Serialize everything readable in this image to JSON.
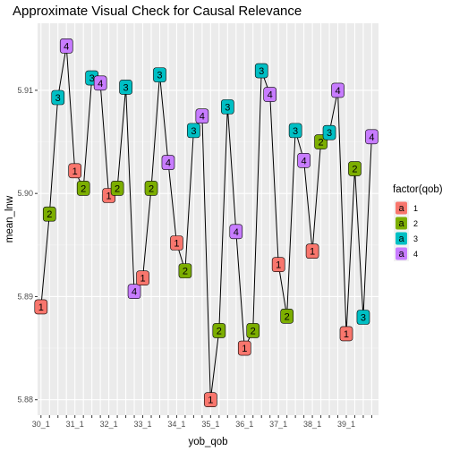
{
  "chart_data": {
    "type": "line",
    "title": "Approximate Visual Check for Causal Relevance",
    "xlabel": "yob_qob",
    "ylabel": "mean_lnw",
    "categories": [
      "30_1",
      "30_2",
      "30_3",
      "30_4",
      "31_1",
      "31_2",
      "31_3",
      "31_4",
      "32_1",
      "32_2",
      "32_3",
      "32_4",
      "33_1",
      "33_2",
      "33_3",
      "33_4",
      "34_1",
      "34_2",
      "34_3",
      "34_4",
      "35_1",
      "35_2",
      "35_3",
      "35_4",
      "36_1",
      "36_2",
      "36_3",
      "36_4",
      "37_1",
      "37_2",
      "37_3",
      "37_4",
      "38_1",
      "38_2",
      "38_3",
      "38_4",
      "39_1",
      "39_2",
      "39_3",
      "39_4"
    ],
    "x_tick_labels": [
      "30_1",
      "31_1",
      "32_1",
      "33_1",
      "34_1",
      "35_1",
      "36_1",
      "37_1",
      "38_1",
      "39_1"
    ],
    "values": [
      5.889,
      5.898,
      5.9093,
      5.9143,
      5.9022,
      5.9005,
      5.9112,
      5.9107,
      5.8998,
      5.9005,
      5.9103,
      5.8905,
      5.8918,
      5.9005,
      5.9115,
      5.903,
      5.8952,
      5.8925,
      5.9061,
      5.9075,
      5.88,
      5.8867,
      5.9084,
      5.8963,
      5.885,
      5.8867,
      5.9119,
      5.9096,
      5.8931,
      5.8881,
      5.9061,
      5.9032,
      5.8944,
      5.905,
      5.9059,
      5.91,
      5.8864,
      5.9024,
      5.888,
      5.9055
    ],
    "qob": [
      1,
      2,
      3,
      4,
      1,
      2,
      3,
      4,
      1,
      2,
      3,
      4,
      1,
      2,
      3,
      4,
      1,
      2,
      3,
      4,
      1,
      2,
      3,
      4,
      1,
      2,
      3,
      4,
      1,
      2,
      3,
      4,
      1,
      2,
      3,
      4,
      1,
      2,
      3,
      4
    ],
    "ylim": [
      5.8785,
      5.9165
    ],
    "y_ticks": [
      5.88,
      5.89,
      5.9,
      5.91
    ],
    "y_tick_labels": [
      "5.88",
      "5.89",
      "5.90",
      "5.91"
    ],
    "grid": true,
    "legend": {
      "title": "factor(qob)",
      "placement": "right",
      "glyph": "a",
      "entries": [
        {
          "label": "1",
          "color": "#F8766D"
        },
        {
          "label": "2",
          "color": "#7CAE00"
        },
        {
          "label": "3",
          "color": "#00BFC4"
        },
        {
          "label": "4",
          "color": "#C77CFF"
        }
      ]
    },
    "panel_background": "#EBEBEB"
  }
}
